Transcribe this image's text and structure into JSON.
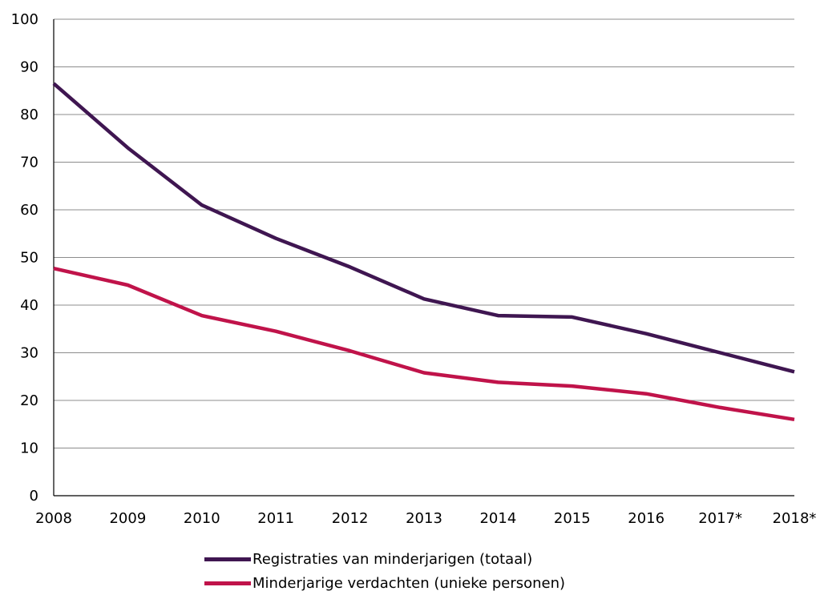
{
  "chart_data": {
    "type": "line",
    "title": "",
    "xlabel": "",
    "ylabel": "",
    "categories": [
      "2008",
      "2009",
      "2010",
      "2011",
      "2012",
      "2013",
      "2014",
      "2015",
      "2016",
      "2017*",
      "2018*"
    ],
    "ylim": [
      0,
      100
    ],
    "yticks": [
      "0",
      "10",
      "20",
      "30",
      "40",
      "50",
      "60",
      "70",
      "80",
      "90",
      "100"
    ],
    "grid": "horizontal",
    "legend_position": "bottom",
    "series": [
      {
        "name": "Registraties van minderjarigen (totaal)",
        "color": "#3f1651",
        "values": [
          86.5,
          73,
          61,
          54,
          48,
          41.3,
          37.8,
          37.5,
          34,
          30,
          26
        ]
      },
      {
        "name": "Minderjarige verdachten (unieke personen)",
        "color": "#c0134a",
        "values": [
          47.7,
          44.2,
          37.8,
          34.5,
          30.4,
          25.8,
          23.8,
          23,
          21.4,
          18.5,
          16
        ]
      }
    ]
  }
}
